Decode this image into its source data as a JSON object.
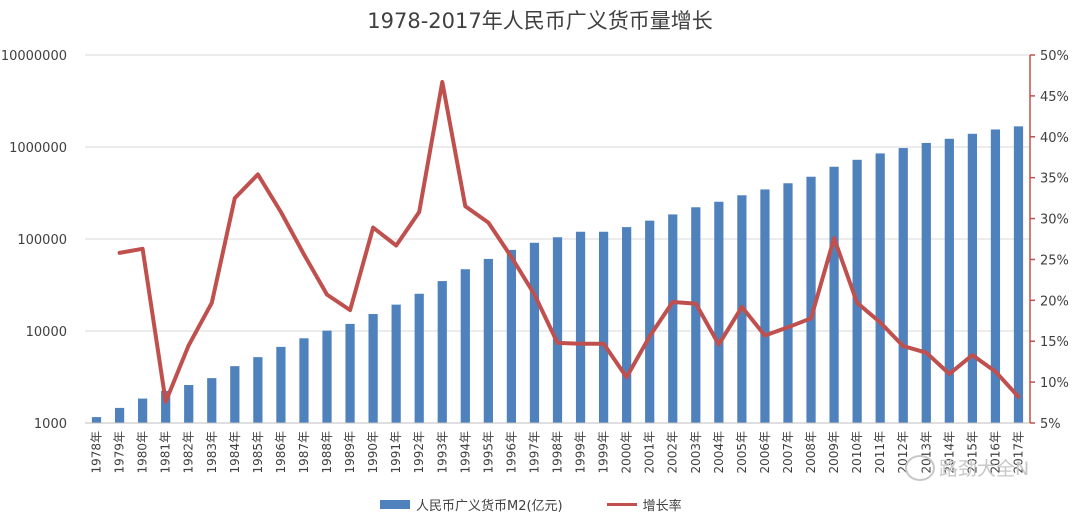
{
  "title": "1978-2017年人民币广义货币量增长",
  "chart_data": {
    "type": "bar+line",
    "title": "1978-2017年人民币广义货币量增长",
    "categories": [
      "1978年",
      "1979年",
      "1980年",
      "1981年",
      "1982年",
      "1983年",
      "1984年",
      "1985年",
      "1986年",
      "1987年",
      "1988年",
      "1989年",
      "1990年",
      "1991年",
      "1992年",
      "1993年",
      "1994年",
      "1995年",
      "1996年",
      "1997年",
      "1998年",
      "1999年",
      "1999年",
      "2000年",
      "2001年",
      "2002年",
      "2003年",
      "2004年",
      "2005年",
      "2006年",
      "2007年",
      "2008年",
      "2009年",
      "2010年",
      "2011年",
      "2012年",
      "2013年",
      "2014年",
      "2015年",
      "2016年",
      "2017年"
    ],
    "series": [
      {
        "name": "人民币广义货币M2(亿元)",
        "type": "bar",
        "axis": "left",
        "color": "#4f81bd",
        "values": [
          1159,
          1459,
          1843,
          2235,
          2590,
          3075,
          4146,
          5199,
          6721,
          8330,
          10100,
          11950,
          15293,
          19350,
          25402,
          34880,
          46923,
          60750,
          76095,
          90995,
          104499,
          119898,
          119898,
          134610,
          158302,
          185007,
          221223,
          254107,
          298756,
          345578,
          403442,
          475167,
          610225,
          725852,
          851591,
          974149,
          1106525,
          1228375,
          1392278,
          1550067,
          1676769
        ]
      },
      {
        "name": "增长率",
        "type": "line",
        "axis": "right",
        "color": "#c0504d",
        "values": [
          null,
          25.8,
          26.3,
          7.6,
          14.5,
          19.7,
          32.5,
          35.4,
          30.8,
          25.6,
          20.7,
          18.8,
          28.9,
          26.7,
          30.8,
          46.7,
          31.5,
          29.5,
          25.3,
          20.7,
          14.8,
          14.7,
          14.7,
          10.6,
          15.6,
          19.8,
          19.6,
          14.6,
          19.2,
          15.7,
          16.7,
          17.8,
          27.6,
          19.7,
          17.3,
          14.4,
          13.6,
          11.0,
          13.3,
          11.3,
          8.2
        ]
      }
    ],
    "y_left": {
      "scale": "log",
      "min": 1000,
      "max": 10000000,
      "ticks": [
        "1000",
        "10000",
        "100000",
        "1000000",
        "10000000"
      ]
    },
    "y_right": {
      "min": 5,
      "max": 50,
      "unit": "%",
      "ticks": [
        "5%",
        "10%",
        "15%",
        "20%",
        "25%",
        "30%",
        "35%",
        "40%",
        "45%",
        "50%"
      ]
    },
    "grid": "horizontal",
    "legend": "bottom"
  },
  "legend": {
    "bar_label": "人民币广义货币M2(亿元)",
    "line_label": "增长率"
  },
  "watermark": "路劲大全N"
}
